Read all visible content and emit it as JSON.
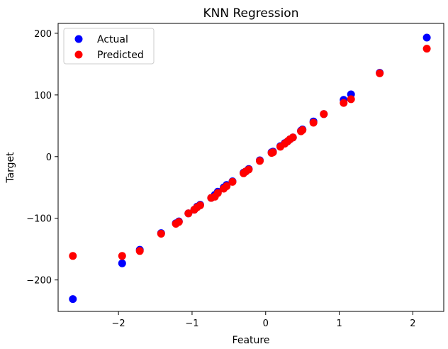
{
  "chart_data": {
    "type": "scatter",
    "title": "KNN Regression",
    "xlabel": "Feature",
    "ylabel": "Target",
    "xlim": [
      -2.82,
      2.42
    ],
    "ylim": [
      -251,
      216
    ],
    "xticks": [
      -2,
      -1,
      0,
      1,
      2
    ],
    "yticks": [
      -200,
      -100,
      0,
      100,
      200
    ],
    "xtick_labels": [
      "−2",
      "−1",
      "0",
      "1",
      "2"
    ],
    "ytick_labels": [
      "−200",
      "−100",
      "0",
      "100",
      "200"
    ],
    "grid": false,
    "legend": {
      "position": "top-left"
    },
    "series": [
      {
        "name": "Actual",
        "color": "#0000ff",
        "points": [
          [
            -2.62,
            -231
          ],
          [
            -1.95,
            -173
          ],
          [
            -1.71,
            -151
          ],
          [
            -1.42,
            -124
          ],
          [
            -1.22,
            -108
          ],
          [
            -1.18,
            -105
          ],
          [
            -1.05,
            -92
          ],
          [
            -0.97,
            -86
          ],
          [
            -0.93,
            -81
          ],
          [
            -0.89,
            -78
          ],
          [
            -0.74,
            -67
          ],
          [
            -0.69,
            -62
          ],
          [
            -0.65,
            -57
          ],
          [
            -0.57,
            -50
          ],
          [
            -0.53,
            -46
          ],
          [
            -0.45,
            -40
          ],
          [
            -0.3,
            -26
          ],
          [
            -0.27,
            -24
          ],
          [
            -0.23,
            -20
          ],
          [
            -0.08,
            -6
          ],
          [
            0.08,
            7
          ],
          [
            0.1,
            8
          ],
          [
            0.2,
            17
          ],
          [
            0.26,
            22
          ],
          [
            0.3,
            25
          ],
          [
            0.33,
            28
          ],
          [
            0.37,
            31
          ],
          [
            0.48,
            42
          ],
          [
            0.5,
            44
          ],
          [
            0.65,
            57
          ],
          [
            0.79,
            69
          ],
          [
            1.06,
            92
          ],
          [
            1.16,
            101
          ],
          [
            1.55,
            136
          ],
          [
            2.19,
            193
          ]
        ]
      },
      {
        "name": "Predicted",
        "color": "#ff0000",
        "points": [
          [
            -2.62,
            -161
          ],
          [
            -1.95,
            -161
          ],
          [
            -1.71,
            -153
          ],
          [
            -1.42,
            -125
          ],
          [
            -1.22,
            -109
          ],
          [
            -1.18,
            -106
          ],
          [
            -1.05,
            -92
          ],
          [
            -0.97,
            -86
          ],
          [
            -0.93,
            -82
          ],
          [
            -0.89,
            -79
          ],
          [
            -0.74,
            -67
          ],
          [
            -0.69,
            -65
          ],
          [
            -0.65,
            -59
          ],
          [
            -0.57,
            -52
          ],
          [
            -0.53,
            -48
          ],
          [
            -0.45,
            -41
          ],
          [
            -0.3,
            -27
          ],
          [
            -0.27,
            -24
          ],
          [
            -0.23,
            -21
          ],
          [
            -0.08,
            -7
          ],
          [
            0.08,
            6
          ],
          [
            0.1,
            7
          ],
          [
            0.2,
            16
          ],
          [
            0.26,
            21
          ],
          [
            0.3,
            25
          ],
          [
            0.33,
            28
          ],
          [
            0.37,
            31
          ],
          [
            0.48,
            41
          ],
          [
            0.5,
            43
          ],
          [
            0.65,
            55
          ],
          [
            0.79,
            69
          ],
          [
            1.06,
            87
          ],
          [
            1.16,
            93
          ],
          [
            1.55,
            135
          ],
          [
            2.19,
            175
          ]
        ]
      }
    ]
  }
}
